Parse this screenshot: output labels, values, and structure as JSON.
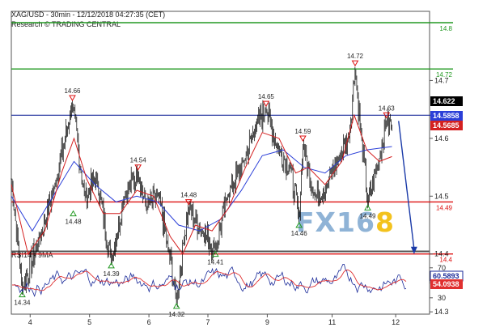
{
  "header": {
    "title": "XAG/USD - 30min - 12/12/2018 04:27:35 (CET)",
    "subtitle": "Research © TRADING CENTRAL"
  },
  "watermark": {
    "text_a": "FX",
    "text_b": "16",
    "text_c": "8"
  },
  "colors": {
    "price": "#000000",
    "ma_fast": "#d42020",
    "ma_slow": "#2b3fd8",
    "resistance": "#229922",
    "pivot": "#1a2a99",
    "support": "#dd1111",
    "rsi": "#1a2a99",
    "rsi_ma": "#e03030",
    "forecast": "#1a3aa8",
    "watermark": "#8fb3d6"
  },
  "chart_data": [
    {
      "type": "candlestick",
      "name": "price",
      "ylim": [
        14.26,
        14.82
      ],
      "xlim": [
        0,
        100
      ],
      "y_ticks": [
        "14.3",
        "14.4",
        "14.5",
        "14.6",
        "14.7"
      ],
      "x_ticks": [
        {
          "label": "4",
          "x": 4.5
        },
        {
          "label": "5",
          "x": 18.7
        },
        {
          "label": "6",
          "x": 32.9
        },
        {
          "label": "7",
          "x": 47.0
        },
        {
          "label": "9",
          "x": 61.2
        },
        {
          "label": "11",
          "x": 76.7
        },
        {
          "label": "12",
          "x": 91.9
        }
      ],
      "levels": [
        {
          "value": 14.8,
          "label": "14.8",
          "kind": "resistance"
        },
        {
          "value": 14.72,
          "label": "14.72",
          "kind": "resistance"
        },
        {
          "value": 14.64,
          "label": "14.64",
          "kind": "pivot"
        },
        {
          "value": 14.49,
          "label": "14.49",
          "kind": "support"
        },
        {
          "value": 14.4,
          "label": "14.4",
          "kind": "support"
        }
      ],
      "close_tags": [
        {
          "value": 14.622,
          "label": "14.622",
          "kind": "price"
        },
        {
          "value": 14.5858,
          "label": "14.5858",
          "kind": "ma_slow"
        },
        {
          "value": 14.5685,
          "label": "14.5685",
          "kind": "ma_fast"
        }
      ],
      "swing_labels": [
        {
          "x": 2.6,
          "y": 14.34,
          "label": "14.34",
          "type": "low"
        },
        {
          "x": 14.6,
          "y": 14.66,
          "label": "14.66",
          "type": "high"
        },
        {
          "x": 14.8,
          "y": 14.48,
          "label": "14.48",
          "type": "low"
        },
        {
          "x": 23.9,
          "y": 14.39,
          "label": "14.39",
          "type": "low"
        },
        {
          "x": 30.3,
          "y": 14.54,
          "label": "14.54",
          "type": "high"
        },
        {
          "x": 39.5,
          "y": 14.32,
          "label": "14.32",
          "type": "low"
        },
        {
          "x": 42.4,
          "y": 14.48,
          "label": "14.48",
          "type": "high"
        },
        {
          "x": 48.8,
          "y": 14.41,
          "label": "14.41",
          "type": "low"
        },
        {
          "x": 60.9,
          "y": 14.65,
          "label": "14.65",
          "type": "high"
        },
        {
          "x": 68.8,
          "y": 14.46,
          "label": "14.46",
          "type": "low"
        },
        {
          "x": 69.7,
          "y": 14.59,
          "label": "14.59",
          "type": "high"
        },
        {
          "x": 82.2,
          "y": 14.72,
          "label": "14.72",
          "type": "high"
        },
        {
          "x": 85.2,
          "y": 14.49,
          "label": "14.49",
          "type": "low"
        },
        {
          "x": 89.7,
          "y": 14.63,
          "label": "14.63",
          "type": "high"
        }
      ],
      "anchors": [
        {
          "x": 0.0,
          "y": 14.53
        },
        {
          "x": 2.6,
          "y": 14.34
        },
        {
          "x": 6.4,
          "y": 14.42
        },
        {
          "x": 10.5,
          "y": 14.52
        },
        {
          "x": 14.6,
          "y": 14.66
        },
        {
          "x": 17.5,
          "y": 14.5
        },
        {
          "x": 20.4,
          "y": 14.53
        },
        {
          "x": 23.9,
          "y": 14.39
        },
        {
          "x": 27.0,
          "y": 14.5
        },
        {
          "x": 30.3,
          "y": 14.54
        },
        {
          "x": 32.3,
          "y": 14.48
        },
        {
          "x": 35.2,
          "y": 14.5
        },
        {
          "x": 37.5,
          "y": 14.41
        },
        {
          "x": 39.5,
          "y": 14.32
        },
        {
          "x": 41.1,
          "y": 14.42
        },
        {
          "x": 42.4,
          "y": 14.48
        },
        {
          "x": 45.6,
          "y": 14.44
        },
        {
          "x": 48.8,
          "y": 14.41
        },
        {
          "x": 51.7,
          "y": 14.5
        },
        {
          "x": 55.5,
          "y": 14.56
        },
        {
          "x": 58.4,
          "y": 14.62
        },
        {
          "x": 60.9,
          "y": 14.65
        },
        {
          "x": 63.8,
          "y": 14.58
        },
        {
          "x": 66.7,
          "y": 14.55
        },
        {
          "x": 68.8,
          "y": 14.46
        },
        {
          "x": 69.7,
          "y": 14.59
        },
        {
          "x": 72.6,
          "y": 14.5
        },
        {
          "x": 75.5,
          "y": 14.52
        },
        {
          "x": 78.4,
          "y": 14.57
        },
        {
          "x": 80.7,
          "y": 14.6
        },
        {
          "x": 82.2,
          "y": 14.72
        },
        {
          "x": 83.7,
          "y": 14.6
        },
        {
          "x": 85.2,
          "y": 14.49
        },
        {
          "x": 87.5,
          "y": 14.55
        },
        {
          "x": 89.7,
          "y": 14.63
        },
        {
          "x": 91.0,
          "y": 14.622
        }
      ],
      "ma_fast": [
        {
          "x": 0,
          "y": 14.52
        },
        {
          "x": 4,
          "y": 14.4
        },
        {
          "x": 8,
          "y": 14.44
        },
        {
          "x": 12,
          "y": 14.54
        },
        {
          "x": 15,
          "y": 14.6
        },
        {
          "x": 18,
          "y": 14.53
        },
        {
          "x": 22,
          "y": 14.47
        },
        {
          "x": 26,
          "y": 14.47
        },
        {
          "x": 30,
          "y": 14.51
        },
        {
          "x": 34,
          "y": 14.5
        },
        {
          "x": 38,
          "y": 14.43
        },
        {
          "x": 41,
          "y": 14.4
        },
        {
          "x": 44,
          "y": 14.45
        },
        {
          "x": 48,
          "y": 14.44
        },
        {
          "x": 52,
          "y": 14.48
        },
        {
          "x": 56,
          "y": 14.55
        },
        {
          "x": 60,
          "y": 14.61
        },
        {
          "x": 64,
          "y": 14.6
        },
        {
          "x": 68,
          "y": 14.54
        },
        {
          "x": 71,
          "y": 14.55
        },
        {
          "x": 75,
          "y": 14.52
        },
        {
          "x": 79,
          "y": 14.56
        },
        {
          "x": 82,
          "y": 14.64
        },
        {
          "x": 85,
          "y": 14.58
        },
        {
          "x": 88,
          "y": 14.56
        },
        {
          "x": 91,
          "y": 14.5685
        }
      ],
      "ma_slow": [
        {
          "x": 0,
          "y": 14.5
        },
        {
          "x": 5,
          "y": 14.44
        },
        {
          "x": 10,
          "y": 14.5
        },
        {
          "x": 15,
          "y": 14.56
        },
        {
          "x": 20,
          "y": 14.52
        },
        {
          "x": 25,
          "y": 14.49
        },
        {
          "x": 30,
          "y": 14.5
        },
        {
          "x": 35,
          "y": 14.49
        },
        {
          "x": 40,
          "y": 14.45
        },
        {
          "x": 45,
          "y": 14.44
        },
        {
          "x": 50,
          "y": 14.46
        },
        {
          "x": 55,
          "y": 14.51
        },
        {
          "x": 60,
          "y": 14.57
        },
        {
          "x": 65,
          "y": 14.58
        },
        {
          "x": 70,
          "y": 14.55
        },
        {
          "x": 75,
          "y": 14.54
        },
        {
          "x": 80,
          "y": 14.57
        },
        {
          "x": 85,
          "y": 14.58
        },
        {
          "x": 91,
          "y": 14.5858
        }
      ],
      "forecast": {
        "from": {
          "x": 92.6,
          "y": 14.63
        },
        "to": {
          "x": 96.3,
          "y": 14.4
        }
      }
    },
    {
      "type": "line",
      "name": "RSI",
      "label": "RSI14 - 9MA",
      "ylim": [
        25,
        80
      ],
      "y_ticks": [
        "30",
        "50",
        "70"
      ],
      "close_tags": [
        {
          "value": 60.5893,
          "label": "60.5893",
          "kind": "rsi"
        },
        {
          "value": 54.0938,
          "label": "54.0938",
          "kind": "rsi_ma"
        }
      ]
    }
  ]
}
